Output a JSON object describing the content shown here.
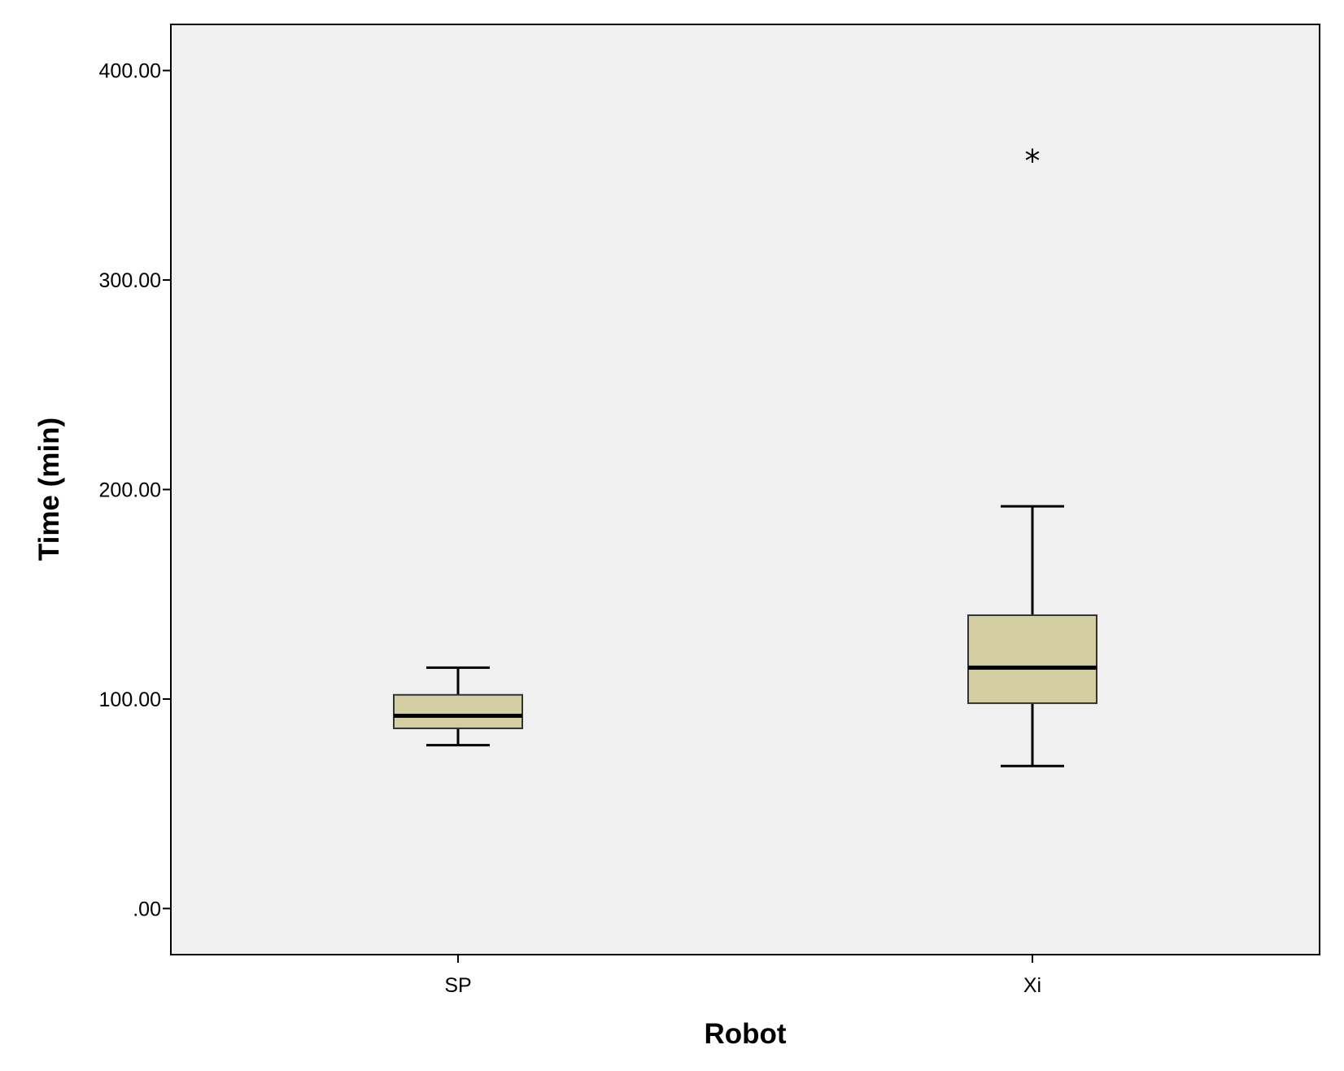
{
  "chart_data": {
    "type": "boxplot",
    "xlabel": "Robot",
    "ylabel": "Time (min)",
    "ylim": [
      -22,
      422
    ],
    "yticks": [
      0,
      100,
      200,
      300,
      400
    ],
    "ytick_labels": [
      ".00",
      "100.00",
      "200.00",
      "300.00",
      "400.00"
    ],
    "categories": [
      "SP",
      "Xi"
    ],
    "boxes": [
      {
        "category": "SP",
        "whisker_low": 78,
        "q1": 86,
        "median": 92,
        "q3": 102,
        "whisker_high": 115,
        "outliers": [],
        "extremes": []
      },
      {
        "category": "Xi",
        "whisker_low": 68,
        "q1": 98,
        "median": 115,
        "q3": 140,
        "whisker_high": 192,
        "outliers": [],
        "extremes": [
          358
        ]
      }
    ],
    "extreme_marker": "*",
    "grid": false,
    "legend": "none"
  },
  "colors": {
    "plot_background": "#f0f0f0",
    "box_fill": "#d3cfa2",
    "box_stroke": "#333333",
    "median": "#000000",
    "whisker": "#000000",
    "axis": "#000000"
  }
}
